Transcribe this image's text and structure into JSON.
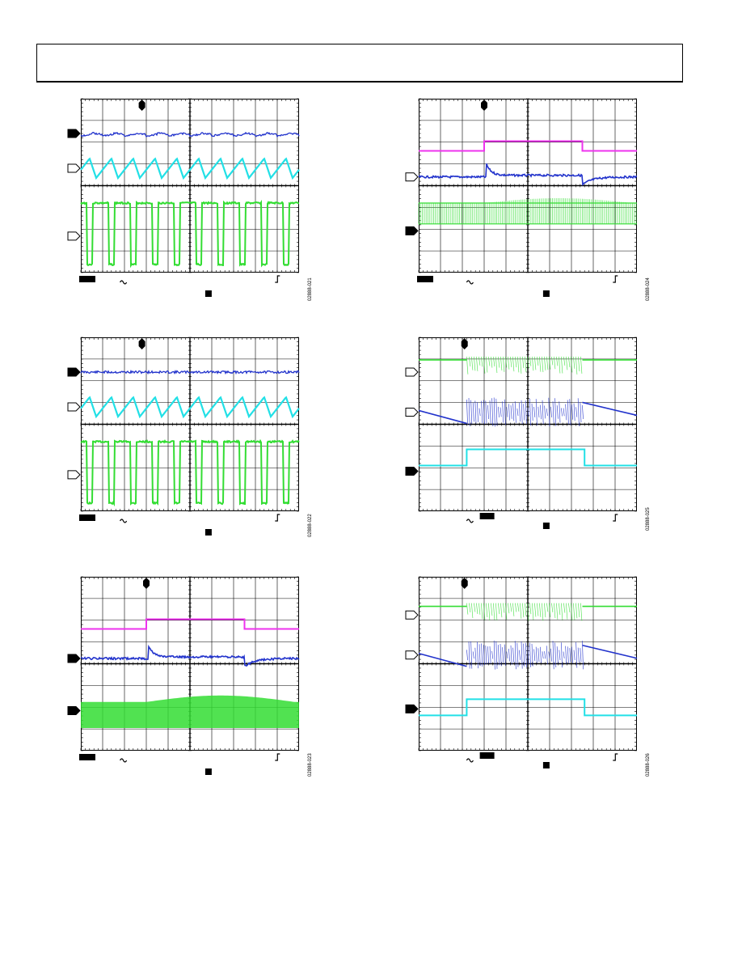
{
  "header": {
    "title": ""
  },
  "colors": {
    "grid": "#000000",
    "blue": "#2233cc",
    "cyan": "#22e0e6",
    "green": "#33dd33",
    "magenta": "#ee33ee"
  },
  "icons": {
    "channel_marker_filled": "channel-marker-filled-icon",
    "channel_marker_open": "channel-marker-open-icon",
    "trigger_position": "trigger-position-icon",
    "ac_coupling": "tilde-icon",
    "trigger_edge": "rising-edge-icon"
  },
  "scopes": [
    {
      "id": "fig-1",
      "figure_id": "02888-021",
      "traces": [
        {
          "kind": "buck",
          "color": "blue",
          "level": 0.2
        },
        {
          "kind": "tri",
          "color": "cyan",
          "level": 0.4
        },
        {
          "kind": "square",
          "color": "green",
          "level": 0.6
        }
      ],
      "markers": [
        {
          "style": "filled",
          "level": 0.2
        },
        {
          "style": "open",
          "level": 0.4
        },
        {
          "style": "open",
          "level": 0.79
        }
      ]
    },
    {
      "id": "fig-2",
      "figure_id": "02888-022",
      "traces": [
        {
          "kind": "flat",
          "color": "blue",
          "level": 0.2
        },
        {
          "kind": "tri",
          "color": "cyan",
          "level": 0.4
        },
        {
          "kind": "square",
          "color": "green",
          "level": 0.6
        }
      ],
      "markers": [
        {
          "style": "filled",
          "level": 0.2
        },
        {
          "style": "open",
          "level": 0.4
        },
        {
          "style": "open",
          "level": 0.79
        }
      ]
    },
    {
      "id": "fig-3",
      "figure_id": "02888-023",
      "traces": [
        {
          "kind": "pulse",
          "color": "magenta",
          "level": 0.3
        },
        {
          "kind": "transient",
          "color": "blue",
          "level": 0.47
        },
        {
          "kind": "band",
          "color": "green",
          "level": 0.74
        }
      ],
      "markers": [
        {
          "style": "filled",
          "level": 0.47
        },
        {
          "style": "filled",
          "level": 0.77
        }
      ]
    },
    {
      "id": "fig-4",
      "figure_id": "02888-024",
      "traces": [
        {
          "kind": "pulse",
          "color": "magenta",
          "level": 0.3
        },
        {
          "kind": "transient",
          "color": "blue",
          "level": 0.45
        },
        {
          "kind": "dense",
          "color": "green",
          "level": 0.63
        }
      ],
      "markers": [
        {
          "style": "open",
          "level": 0.45
        },
        {
          "style": "filled",
          "level": 0.76
        }
      ]
    },
    {
      "id": "fig-5",
      "figure_id": "02888-025",
      "traces": [
        {
          "kind": "burst-top",
          "color": "green",
          "level": 0.13
        },
        {
          "kind": "ramp-burst",
          "color": "blue",
          "level": 0.43
        },
        {
          "kind": "step",
          "color": "cyan",
          "level": 0.7
        }
      ],
      "markers": [
        {
          "style": "open",
          "level": 0.2
        },
        {
          "style": "open",
          "level": 0.43
        },
        {
          "style": "filled",
          "level": 0.77
        }
      ]
    },
    {
      "id": "fig-6",
      "figure_id": "02888-026",
      "traces": [
        {
          "kind": "burst-top",
          "color": "green",
          "level": 0.17
        },
        {
          "kind": "ramp-burst",
          "color": "blue",
          "level": 0.45
        },
        {
          "kind": "step",
          "color": "cyan",
          "level": 0.76
        }
      ],
      "markers": [
        {
          "style": "open",
          "level": 0.22
        },
        {
          "style": "open",
          "level": 0.45
        },
        {
          "style": "filled",
          "level": 0.76
        }
      ]
    }
  ]
}
